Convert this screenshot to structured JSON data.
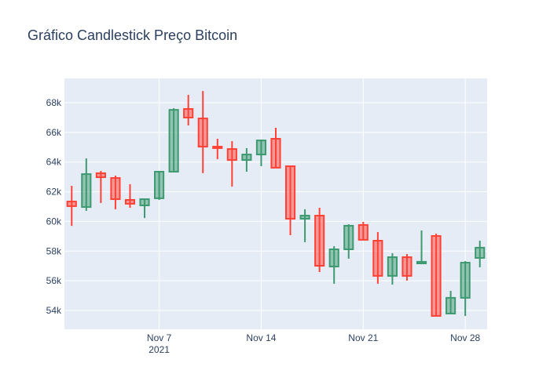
{
  "chart_data": {
    "type": "candlestick",
    "title": "Gráfico Candlestick Preço Bitcoin",
    "x": [
      "2021-11-01",
      "2021-11-02",
      "2021-11-03",
      "2021-11-04",
      "2021-11-05",
      "2021-11-06",
      "2021-11-07",
      "2021-11-08",
      "2021-11-09",
      "2021-11-10",
      "2021-11-11",
      "2021-11-12",
      "2021-11-13",
      "2021-11-14",
      "2021-11-15",
      "2021-11-16",
      "2021-11-17",
      "2021-11-18",
      "2021-11-19",
      "2021-11-20",
      "2021-11-21",
      "2021-11-22",
      "2021-11-23",
      "2021-11-24",
      "2021-11-25",
      "2021-11-26",
      "2021-11-27",
      "2021-11-28",
      "2021-11-29"
    ],
    "open": [
      61340,
      60970,
      63250,
      62930,
      61450,
      61080,
      61560,
      63350,
      67580,
      66940,
      65040,
      64880,
      64140,
      64510,
      65570,
      63720,
      60180,
      60390,
      56960,
      58120,
      59760,
      58700,
      56330,
      57590,
      57170,
      59020,
      53790,
      54850,
      57540
    ],
    "high": [
      62400,
      64250,
      63400,
      63090,
      62510,
      61530,
      63400,
      67630,
      68530,
      68790,
      65570,
      65410,
      64940,
      65520,
      66310,
      63720,
      60820,
      60920,
      58330,
      59810,
      59970,
      59280,
      57860,
      57800,
      59390,
      59180,
      55320,
      57330,
      58700
    ],
    "low": [
      59700,
      60710,
      61240,
      60820,
      60920,
      60230,
      61450,
      63300,
      66470,
      63250,
      64200,
      62350,
      63350,
      63720,
      63620,
      59070,
      58600,
      56590,
      55800,
      57490,
      58760,
      55800,
      55740,
      56010,
      57170,
      53630,
      53740,
      53630,
      56910
    ],
    "close": [
      61030,
      63190,
      62980,
      61500,
      61190,
      61500,
      63350,
      67520,
      67000,
      65040,
      64940,
      64140,
      64510,
      65460,
      63620,
      60180,
      60390,
      57010,
      58120,
      59710,
      58760,
      56330,
      57590,
      56330,
      57280,
      53630,
      54850,
      57220,
      58230
    ],
    "increasing_color": "#3D9970",
    "decreasing_color": "#FF4136",
    "xlim": [
      "2021-10-31T12:00",
      "2021-11-29T12:00"
    ],
    "xticks": [
      {
        "value": "2021-11-07",
        "label": "Nov 7\n2021"
      },
      {
        "value": "2021-11-14",
        "label": "Nov 14"
      },
      {
        "value": "2021-11-21",
        "label": "Nov 21"
      },
      {
        "value": "2021-11-28",
        "label": "Nov 28"
      }
    ],
    "ylim": [
      52730,
      69640
    ],
    "yticks": [
      {
        "value": 54000,
        "label": "54k"
      },
      {
        "value": 56000,
        "label": "56k"
      },
      {
        "value": 58000,
        "label": "58k"
      },
      {
        "value": 60000,
        "label": "60k"
      },
      {
        "value": 62000,
        "label": "62k"
      },
      {
        "value": 64000,
        "label": "64k"
      },
      {
        "value": 66000,
        "label": "66k"
      },
      {
        "value": 68000,
        "label": "68k"
      }
    ],
    "grid": true
  }
}
